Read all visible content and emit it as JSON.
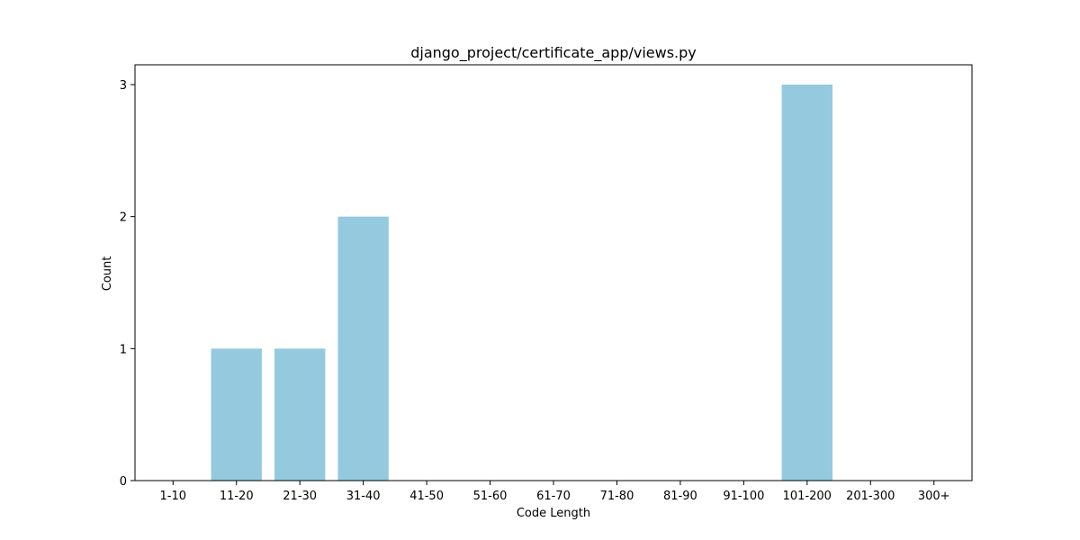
{
  "chart_data": {
    "type": "bar",
    "title": "django_project/certificate_app/views.py",
    "xlabel": "Code Length",
    "ylabel": "Count",
    "categories": [
      "1-10",
      "11-20",
      "21-30",
      "31-40",
      "41-50",
      "51-60",
      "61-70",
      "71-80",
      "81-90",
      "91-100",
      "101-200",
      "201-300",
      "300+"
    ],
    "values": [
      0,
      1,
      1,
      2,
      0,
      0,
      0,
      0,
      0,
      0,
      3,
      0,
      0
    ],
    "ylim": [
      0,
      3.15
    ],
    "yticks": [
      0,
      1,
      2,
      3
    ],
    "bar_color": "#95c9dd",
    "grid": false,
    "legend": "none"
  }
}
